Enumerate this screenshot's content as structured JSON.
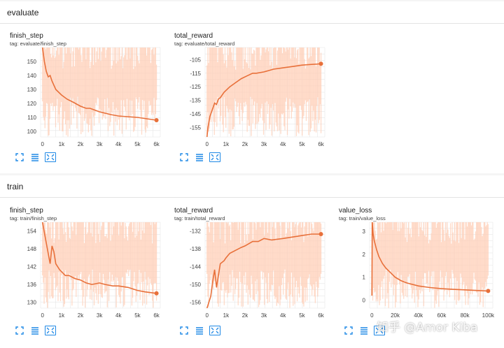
{
  "sections": [
    {
      "name": "evaluate",
      "charts": [
        0,
        1
      ]
    },
    {
      "name": "train",
      "charts": [
        2,
        3,
        4
      ]
    }
  ],
  "colors": {
    "line": "#e8703a",
    "band": "#ffcfb8",
    "grid": "#e6e6e6",
    "accent": "#1e88e5"
  },
  "icons": [
    "fit-to-data-icon",
    "data-table-icon",
    "expand-icon"
  ],
  "watermark": "知乎 @Amor Kiba",
  "chart_data": [
    {
      "type": "line",
      "title": "finish_step",
      "tag": "tag: evaluate/finish_step",
      "xlim": [
        -100,
        6200
      ],
      "ylim": [
        96,
        160
      ],
      "xticks": [
        0,
        1000,
        2000,
        3000,
        4000,
        5000,
        6000
      ],
      "xtick_labels": [
        "0",
        "1k",
        "2k",
        "3k",
        "4k",
        "5k",
        "6k"
      ],
      "yticks": [
        100,
        110,
        120,
        130,
        140,
        150
      ],
      "series": [
        {
          "x": [
            0,
            100,
            200,
            300,
            400,
            500,
            700,
            1000,
            1300,
            1600,
            2000,
            2300,
            2500,
            2800,
            3000,
            3300,
            3600,
            4000,
            4500,
            5000,
            5500,
            6000
          ],
          "values": [
            165,
            150,
            143,
            139,
            140,
            136,
            130,
            126,
            123,
            121,
            118,
            116.5,
            116.5,
            115,
            114,
            113,
            112,
            111,
            110.5,
            110,
            109,
            108
          ]
        }
      ]
    },
    {
      "type": "line",
      "title": "total_reward",
      "tag": "tag: evaluate/total_reward",
      "xlim": [
        -100,
        6200
      ],
      "ylim": [
        -162,
        -96
      ],
      "xticks": [
        0,
        1000,
        2000,
        3000,
        4000,
        5000,
        6000
      ],
      "xtick_labels": [
        "0",
        "1k",
        "2k",
        "3k",
        "4k",
        "5k",
        "6k"
      ],
      "yticks": [
        -105,
        -115,
        -125,
        -135,
        -145,
        -155
      ],
      "series": [
        {
          "x": [
            0,
            50,
            150,
            300,
            400,
            500,
            600,
            700,
            900,
            1200,
            1500,
            1800,
            2100,
            2400,
            2600,
            3000,
            3500,
            4000,
            4500,
            5000,
            5500,
            6000
          ],
          "values": [
            -163,
            -155,
            -147,
            -141,
            -137,
            -138,
            -134,
            -133,
            -129,
            -125,
            -122,
            -119,
            -117,
            -115,
            -115,
            -114,
            -112,
            -111,
            -110,
            -109,
            -108.5,
            -108
          ]
        }
      ]
    },
    {
      "type": "line",
      "title": "finish_step",
      "tag": "tag: train/finish_step",
      "xlim": [
        -100,
        6200
      ],
      "ylim": [
        128,
        157
      ],
      "xticks": [
        0,
        1000,
        2000,
        3000,
        4000,
        5000,
        6000
      ],
      "xtick_labels": [
        "0",
        "1k",
        "2k",
        "3k",
        "4k",
        "5k",
        "6k"
      ],
      "yticks": [
        130,
        136,
        142,
        148,
        154
      ],
      "series": [
        {
          "x": [
            0,
            200,
            400,
            500,
            600,
            700,
            900,
            1200,
            1400,
            1700,
            2000,
            2300,
            2600,
            3000,
            3300,
            3700,
            4000,
            4500,
            5000,
            5400,
            6000
          ],
          "values": [
            158,
            150,
            143,
            149,
            147,
            143,
            141,
            139,
            139,
            138,
            137.5,
            136.5,
            136,
            136.5,
            136,
            135.5,
            135.5,
            135,
            134,
            133.5,
            133
          ]
        }
      ]
    },
    {
      "type": "line",
      "title": "total_reward",
      "tag": "tag: train/total_reward",
      "xlim": [
        -100,
        6200
      ],
      "ylim": [
        -158,
        -129
      ],
      "xticks": [
        0,
        1000,
        2000,
        3000,
        4000,
        5000,
        6000
      ],
      "xtick_labels": [
        "0",
        "1k",
        "2k",
        "3k",
        "4k",
        "5k",
        "6k"
      ],
      "yticks": [
        -132,
        -138,
        -144,
        -150,
        -156
      ],
      "series": [
        {
          "x": [
            0,
            200,
            300,
            400,
            500,
            700,
            900,
            1000,
            1200,
            1500,
            1800,
            2000,
            2400,
            2700,
            3000,
            3400,
            4000,
            4500,
            5000,
            5500,
            6000
          ],
          "values": [
            -158,
            -154,
            -149,
            -145,
            -151,
            -143,
            -142,
            -141,
            -139.5,
            -138.5,
            -137.5,
            -137,
            -135.5,
            -135.5,
            -134.5,
            -135,
            -134.5,
            -134,
            -133.5,
            -133,
            -133
          ]
        }
      ]
    },
    {
      "type": "line",
      "title": "value_loss",
      "tag": "tag: train/value_loss",
      "xlim": [
        -2000,
        104000
      ],
      "ylim": [
        -0.35,
        3.4
      ],
      "xticks": [
        0,
        20000,
        40000,
        60000,
        80000,
        100000
      ],
      "xtick_labels": [
        "0",
        "20k",
        "40k",
        "60k",
        "80k",
        "100k"
      ],
      "yticks": [
        0,
        1,
        2,
        3
      ],
      "series": [
        {
          "x": [
            0,
            300,
            1000,
            2000,
            4000,
            6000,
            9000,
            12000,
            16000,
            20000,
            25000,
            30000,
            40000,
            50000,
            60000,
            70000,
            80000,
            90000,
            100000
          ],
          "values": [
            0.2,
            3.5,
            2.9,
            2.6,
            2.2,
            1.9,
            1.6,
            1.4,
            1.2,
            1.0,
            0.85,
            0.75,
            0.62,
            0.55,
            0.5,
            0.47,
            0.45,
            0.42,
            0.4
          ]
        }
      ]
    }
  ]
}
